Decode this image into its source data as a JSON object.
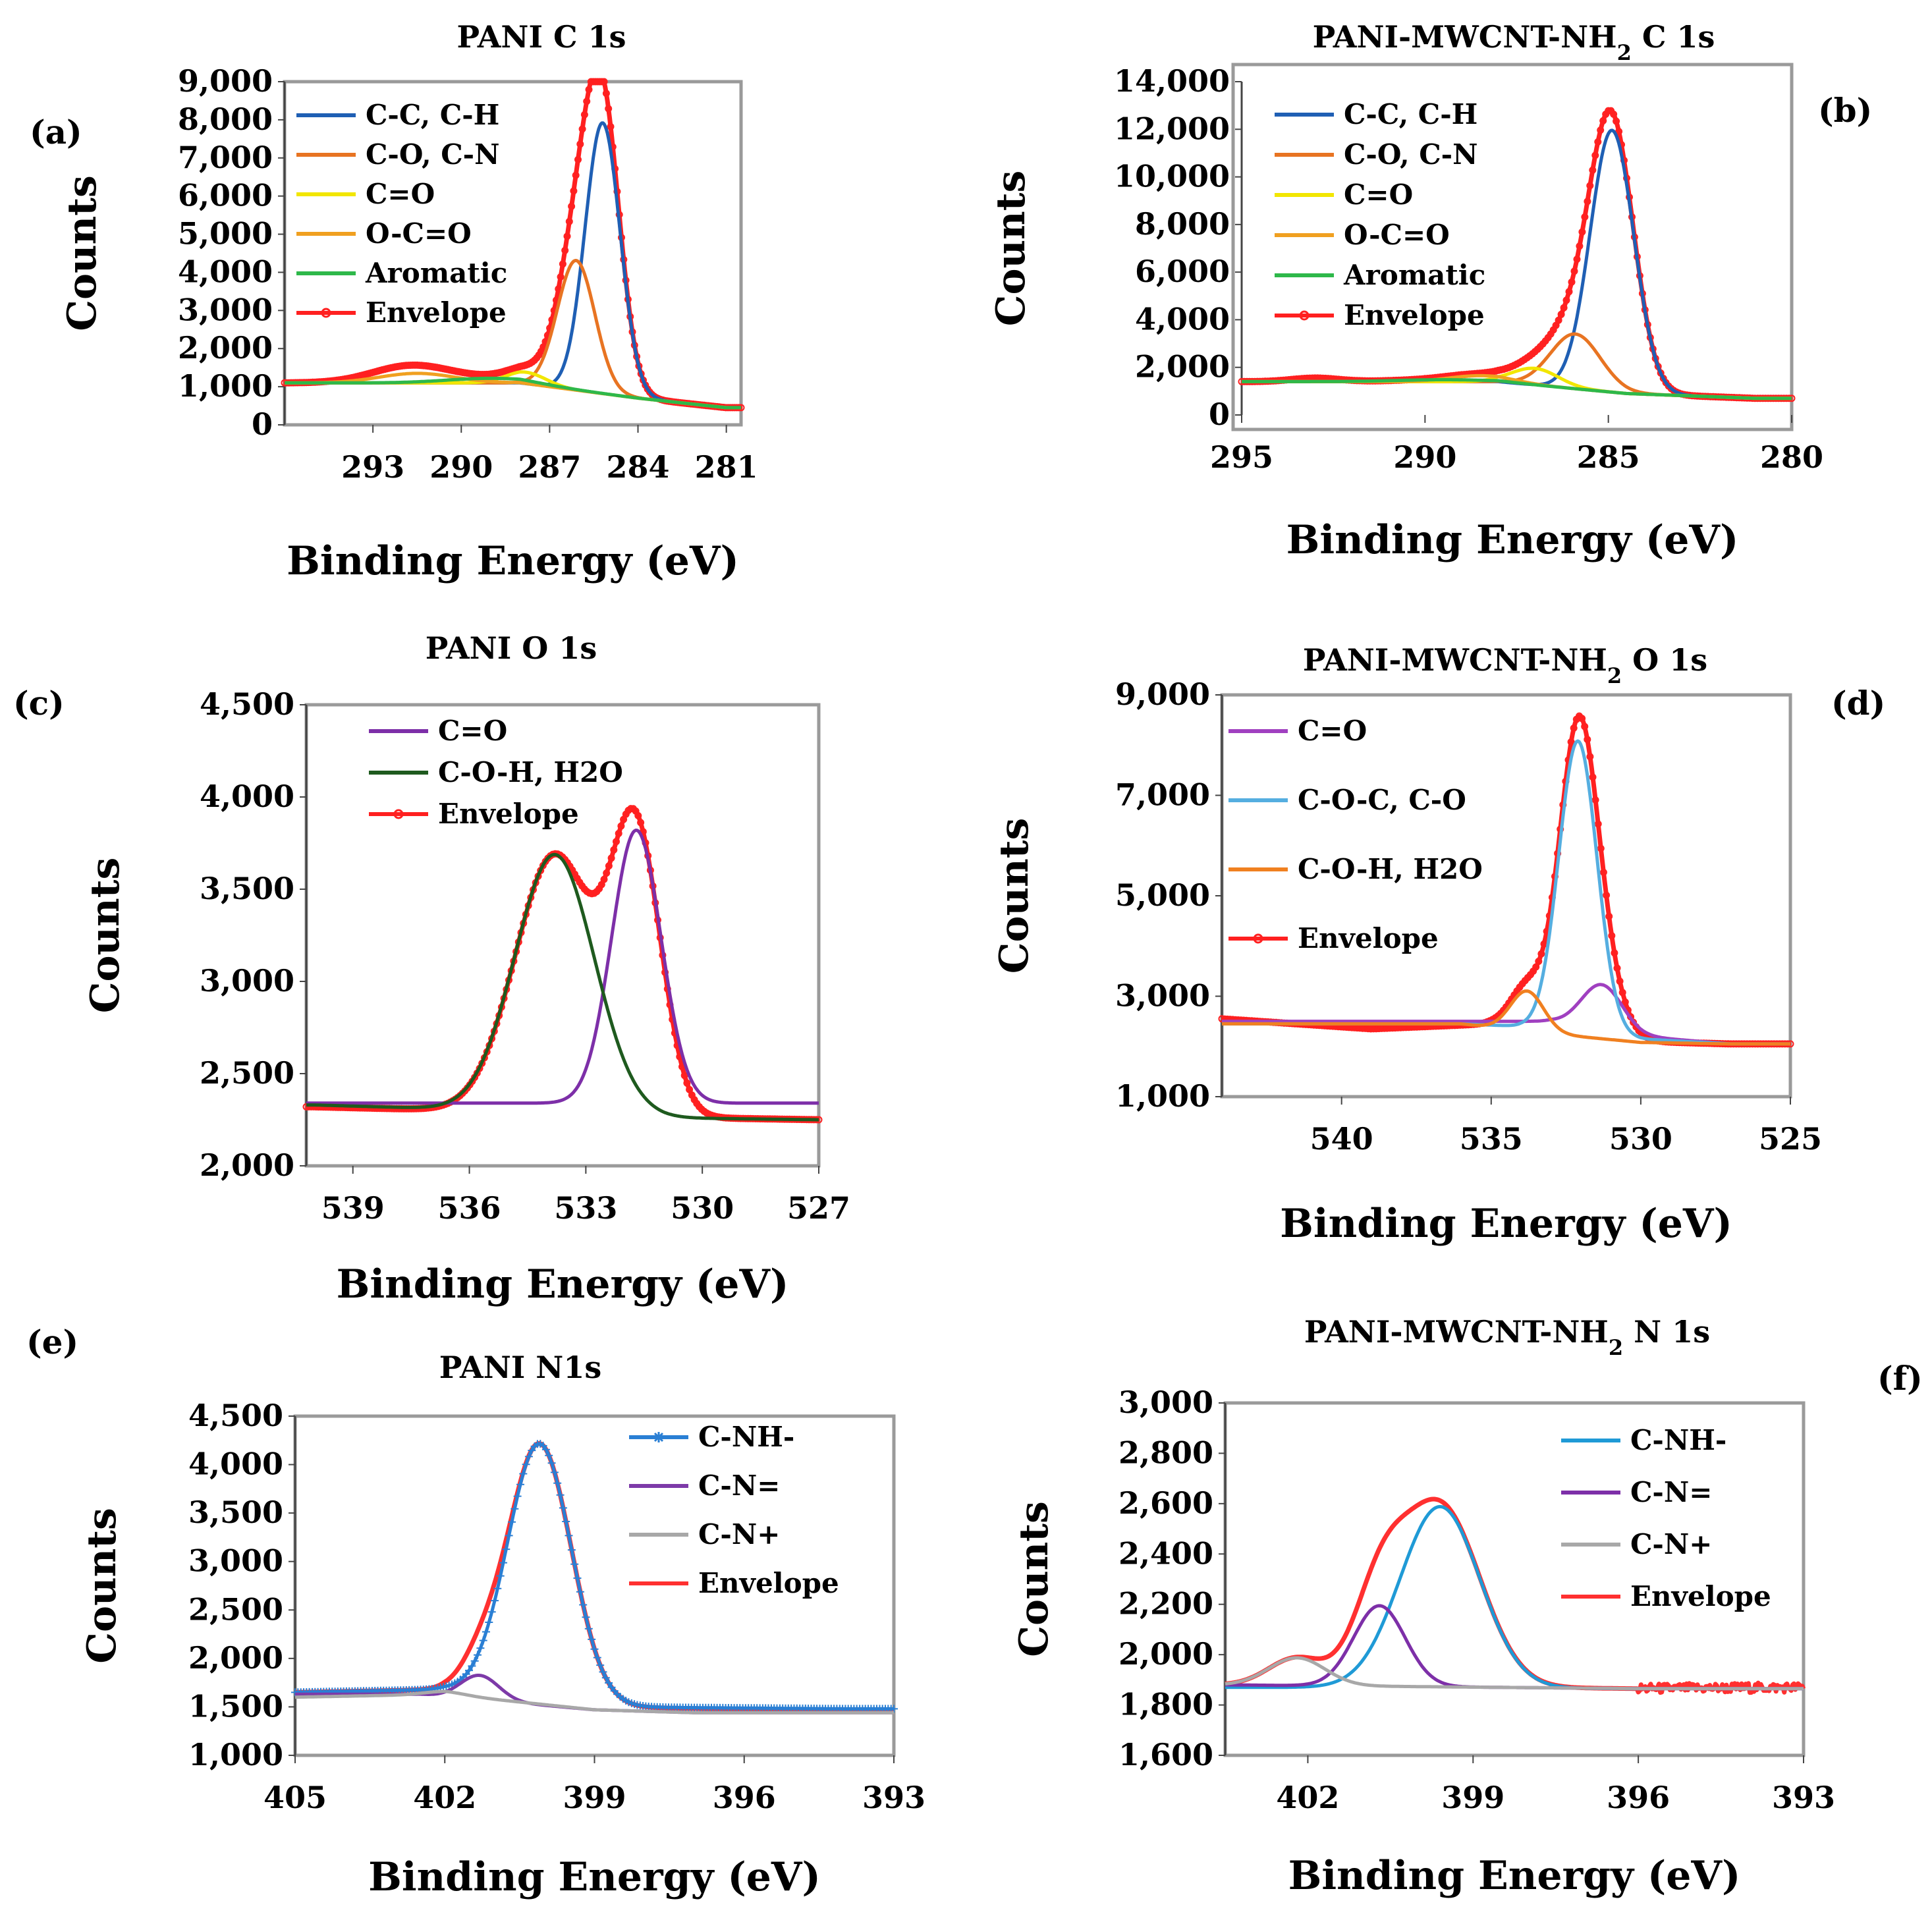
{
  "chart_data": [
    {
      "id": "a",
      "type": "line",
      "panel_label": "(a)",
      "title": "PANI C 1s",
      "xlabel": "Binding Energy (eV)",
      "ylabel": "Counts",
      "xlim": [
        296,
        280.5
      ],
      "ylim": [
        0,
        9000
      ],
      "xticks": [
        293,
        290,
        287,
        284,
        281
      ],
      "xtick_labels": [
        "293",
        "290",
        "287",
        "284",
        "281"
      ],
      "yticks": [
        0,
        1000,
        2000,
        3000,
        4000,
        5000,
        6000,
        7000,
        8000,
        9000
      ],
      "ytick_labels": [
        "0",
        "1,000",
        "2,000",
        "3,000",
        "4,000",
        "5,000",
        "6,000",
        "7,000",
        "8,000",
        "9,000"
      ],
      "legend_position": "top-left",
      "grid": false,
      "background": {
        "kind": "linear",
        "points": [
          [
            296,
            1100
          ],
          [
            288,
            1100
          ],
          [
            284,
            700
          ],
          [
            281,
            450
          ]
        ]
      },
      "series": [
        {
          "name": "C-C, C-H",
          "color": "#1f5fb4",
          "peaks": [
            [
              285.2,
              7100,
              1.4
            ]
          ]
        },
        {
          "name": "C-O, C-N",
          "color": "#e87422",
          "peaks": [
            [
              286.1,
              3400,
              1.5
            ]
          ]
        },
        {
          "name": "C=O",
          "color": "#f2e600",
          "peaks": [
            [
              287.8,
              300,
              1.6
            ]
          ]
        },
        {
          "name": "O-C=O",
          "color": "#f0a020",
          "peaks": [
            [
              291.5,
              250,
              3.0
            ]
          ]
        },
        {
          "name": "Aromatic",
          "color": "#2eb84a",
          "peaks": [
            [
              289.0,
              120,
              3.5
            ]
          ]
        },
        {
          "name": "Envelope",
          "color": "#ff2020",
          "marker": true,
          "envelope": true,
          "extra_peaks": [
            [
              292.0,
              200,
              3.0
            ]
          ]
        }
      ]
    },
    {
      "id": "b",
      "type": "line",
      "panel_label": "(b)",
      "title": "PANI-MWCNT-NH",
      "title_sub": "2",
      "title_tail": " C 1s",
      "xlabel": "Binding Energy (eV)",
      "ylabel": "Counts",
      "xlim": [
        295,
        280
      ],
      "ylim": [
        0,
        14000
      ],
      "xticks": [
        295,
        290,
        285,
        280
      ],
      "xtick_labels": [
        "295",
        "290",
        "285",
        "280"
      ],
      "yticks": [
        0,
        2000,
        4000,
        6000,
        8000,
        10000,
        12000,
        14000
      ],
      "ytick_labels": [
        "0",
        "2,000",
        "4,000",
        "6,000",
        "8,000",
        "10,000",
        "12,000",
        "14,000"
      ],
      "legend_position": "top-left",
      "grid": false,
      "background": {
        "kind": "linear",
        "points": [
          [
            295,
            1400
          ],
          [
            288,
            1400
          ],
          [
            284.5,
            900
          ],
          [
            281,
            700
          ]
        ]
      },
      "series": [
        {
          "name": "C-C, C-H",
          "color": "#1f5fb4",
          "peaks": [
            [
              284.9,
              11000,
              1.4
            ]
          ]
        },
        {
          "name": "C-O, C-N",
          "color": "#e87422",
          "peaks": [
            [
              285.9,
              2300,
              1.6
            ]
          ]
        },
        {
          "name": "C=O",
          "color": "#f2e600",
          "peaks": [
            [
              287.0,
              700,
              1.5
            ]
          ]
        },
        {
          "name": "O-C=O",
          "color": "#f0a020",
          "peaks": [
            [
              288.5,
              250,
              2.0
            ]
          ]
        },
        {
          "name": "Aromatic",
          "color": "#2eb84a",
          "peaks": [
            [
              289.5,
              80,
              3.0
            ]
          ]
        },
        {
          "name": "Envelope",
          "color": "#ff2020",
          "marker": true,
          "envelope": true,
          "extra_peaks": [
            [
              293.0,
              150,
              1.5
            ]
          ]
        }
      ]
    },
    {
      "id": "c",
      "type": "line",
      "panel_label": "(c)",
      "title": "PANI O 1s",
      "xlabel": "Binding Energy (eV)",
      "ylabel": "Counts",
      "xlim": [
        540.2,
        527
      ],
      "ylim": [
        2000,
        4500
      ],
      "xticks": [
        539,
        536,
        533,
        530,
        527
      ],
      "xtick_labels": [
        "539",
        "536",
        "533",
        "530",
        "527"
      ],
      "yticks": [
        2000,
        2500,
        3000,
        3500,
        4000,
        4500
      ],
      "ytick_labels": [
        "2,000",
        "2,500",
        "3,000",
        "3,500",
        "4,000",
        "4,500"
      ],
      "legend_position": "top-left",
      "grid": false,
      "series": [
        {
          "name": "C=O",
          "color": "#7d2fa8",
          "peaks": [
            [
              531.7,
              1480,
              1.5
            ]
          ],
          "baseline": {
            "kind": "linear",
            "points": [
              [
                540,
                2340
              ],
              [
                527,
                2340
              ]
            ]
          }
        },
        {
          "name": "C-O-H, H2O",
          "color": "#1e5a1e",
          "peaks": [
            [
              533.8,
              1400,
              2.4
            ]
          ],
          "baseline": {
            "kind": "step",
            "points": [
              [
                540,
                2330
              ],
              [
                535,
                2300
              ],
              [
                531,
                2260
              ],
              [
                527,
                2250
              ]
            ]
          }
        },
        {
          "name": "Envelope",
          "color": "#ff2020",
          "marker": true,
          "envelope": true,
          "peaks": [
            [
              531.7,
              1480,
              1.5
            ],
            [
              533.8,
              1400,
              2.4
            ]
          ],
          "baseline": {
            "kind": "linear",
            "points": [
              [
                540,
                2320
              ],
              [
                536,
                2300
              ],
              [
                530,
                2260
              ],
              [
                527,
                2250
              ]
            ]
          }
        }
      ]
    },
    {
      "id": "d",
      "type": "line",
      "panel_label": "(d)",
      "title": "PANI-MWCNT-NH",
      "title_sub": "2",
      "title_tail": " O 1s",
      "xlabel": "Binding Energy (eV)",
      "ylabel": "Counts",
      "xlim": [
        544,
        525
      ],
      "ylim": [
        1000,
        9000
      ],
      "xticks": [
        540,
        535,
        530,
        525
      ],
      "xtick_labels": [
        "540",
        "535",
        "530",
        "525"
      ],
      "yticks": [
        1000,
        3000,
        5000,
        7000,
        9000
      ],
      "ytick_labels": [
        "1,000",
        "3,000",
        "5,000",
        "7,000",
        "9,000"
      ],
      "legend_position": "top-left",
      "grid": false,
      "series": [
        {
          "name": "C=O",
          "color": "#a040c0",
          "peaks": [
            [
              531.3,
              900,
              1.6
            ]
          ],
          "baseline": {
            "kind": "linear",
            "points": [
              [
                536,
                2500
              ],
              [
                533,
                2500
              ],
              [
                530,
                2200
              ],
              [
                527,
                2050
              ]
            ]
          }
        },
        {
          "name": "C-O-C, C-O",
          "color": "#55aee0",
          "peaks": [
            [
              532.1,
              5800,
              1.5
            ]
          ],
          "baseline": {
            "kind": "linear",
            "points": [
              [
                536,
                2450
              ],
              [
                534,
                2400
              ],
              [
                530,
                2150
              ],
              [
                527,
                2050
              ]
            ]
          }
        },
        {
          "name": "C-O-H, H2O",
          "color": "#f08020",
          "peaks": [
            [
              533.8,
              800,
              1.3
            ]
          ],
          "baseline": {
            "kind": "linear",
            "points": [
              [
                536,
                2450
              ],
              [
                533,
                2250
              ],
              [
                530,
                2080
              ],
              [
                527,
                2050
              ]
            ]
          }
        },
        {
          "name": "Envelope",
          "color": "#ff2020",
          "marker": true,
          "envelope": true,
          "peaks": [
            [
              531.3,
              900,
              1.6
            ],
            [
              532.1,
              5800,
              1.5
            ],
            [
              533.8,
              800,
              1.3
            ]
          ],
          "baseline": {
            "kind": "linear",
            "points": [
              [
                544,
                2550
              ],
              [
                539,
                2350
              ],
              [
                535,
                2450
              ],
              [
                532,
                2300
              ],
              [
                530,
                2100
              ],
              [
                527,
                2050
              ]
            ]
          }
        }
      ]
    },
    {
      "id": "e",
      "type": "line",
      "panel_label": "(e)",
      "title": "PANI N1s",
      "xlabel": "Binding Energy (eV)",
      "ylabel": "Counts",
      "xlim": [
        405,
        393
      ],
      "ylim": [
        1000,
        4500
      ],
      "xticks": [
        405,
        402,
        399,
        396,
        393
      ],
      "xtick_labels": [
        "405",
        "402",
        "399",
        "396",
        "393"
      ],
      "yticks": [
        1000,
        1500,
        2000,
        2500,
        3000,
        3500,
        4000,
        4500
      ],
      "ytick_labels": [
        "1,000",
        "1,500",
        "2,000",
        "2,500",
        "3,000",
        "3,500",
        "4,000",
        "4,500"
      ],
      "legend_position": "top-right",
      "grid": false,
      "series": [
        {
          "name": "C-NH-",
          "color": "#2a7fd4",
          "marker": "star",
          "peaks": [
            [
              400.1,
              2650,
              1.5
            ]
          ],
          "baseline": {
            "kind": "linear",
            "points": [
              [
                405,
                1650
              ],
              [
                402,
                1680
              ],
              [
                399,
                1500
              ],
              [
                394,
                1480
              ]
            ]
          }
        },
        {
          "name": "C-N=",
          "color": "#7d3aa8",
          "peaks": [
            [
              401.3,
              250,
              0.9
            ]
          ],
          "baseline": {
            "kind": "linear",
            "points": [
              [
                402.5,
                1630
              ],
              [
                399,
                1470
              ],
              [
                397,
                1440
              ]
            ]
          }
        },
        {
          "name": "C-N+",
          "color": "#a8a8a8",
          "peaks": [
            [
              402.0,
              30,
              1.0
            ]
          ],
          "baseline": {
            "kind": "linear",
            "points": [
              [
                405,
                1600
              ],
              [
                402,
                1630
              ],
              [
                399,
                1470
              ],
              [
                397,
                1440
              ]
            ]
          }
        },
        {
          "name": "Envelope",
          "color": "#ff3030",
          "envelope": true,
          "peaks": [
            [
              400.1,
              2650,
              1.5
            ],
            [
              401.3,
              250,
              0.9
            ]
          ],
          "baseline": {
            "kind": "linear",
            "points": [
              [
                405,
                1650
              ],
              [
                402,
                1680
              ],
              [
                399,
                1500
              ],
              [
                394,
                1460
              ]
            ]
          }
        }
      ]
    },
    {
      "id": "f",
      "type": "line",
      "panel_label": "(f)",
      "title": "PANI-MWCNT-NH",
      "title_sub": "2",
      "title_tail": " N 1s",
      "xlabel": "Binding Energy (eV)",
      "ylabel": "Counts",
      "xlim": [
        403.5,
        393
      ],
      "ylim": [
        1600,
        3000
      ],
      "xticks": [
        402,
        399,
        396,
        393
      ],
      "xtick_labels": [
        "402",
        "399",
        "396",
        "393"
      ],
      "yticks": [
        1600,
        1800,
        2000,
        2200,
        2400,
        2600,
        2800,
        3000
      ],
      "ytick_labels": [
        "1,600",
        "1,800",
        "2,000",
        "2,200",
        "2,400",
        "2,600",
        "2,800",
        "3,000"
      ],
      "legend_position": "top-right",
      "grid": false,
      "series": [
        {
          "name": "C-NH-",
          "color": "#1f9ad6",
          "peaks": [
            [
              399.6,
              720,
              1.7
            ]
          ],
          "baseline": {
            "kind": "linear",
            "points": [
              [
                402,
                1870
              ],
              [
                396,
                1865
              ]
            ]
          }
        },
        {
          "name": "C-N=",
          "color": "#7d2fa8",
          "peaks": [
            [
              400.7,
              320,
              1.1
            ]
          ],
          "baseline": {
            "kind": "linear",
            "points": [
              [
                403.5,
                1880
              ],
              [
                396,
                1865
              ]
            ]
          }
        },
        {
          "name": "C-N+",
          "color": "#a8a8a8",
          "peaks": [
            [
              402.2,
              110,
              1.2
            ]
          ],
          "baseline": {
            "kind": "linear",
            "points": [
              [
                403.5,
                1880
              ],
              [
                396,
                1865
              ]
            ]
          }
        },
        {
          "name": "Envelope",
          "color": "#ff3030",
          "envelope": true,
          "noisy_range": [
            396,
            393
          ],
          "peaks": [
            [
              399.6,
              720,
              1.7
            ],
            [
              400.7,
              320,
              1.1
            ],
            [
              402.2,
              110,
              1.2
            ]
          ],
          "baseline": {
            "kind": "linear",
            "points": [
              [
                403.5,
                1880
              ],
              [
                396,
                1865
              ],
              [
                393,
                1870
              ]
            ]
          }
        }
      ]
    }
  ]
}
